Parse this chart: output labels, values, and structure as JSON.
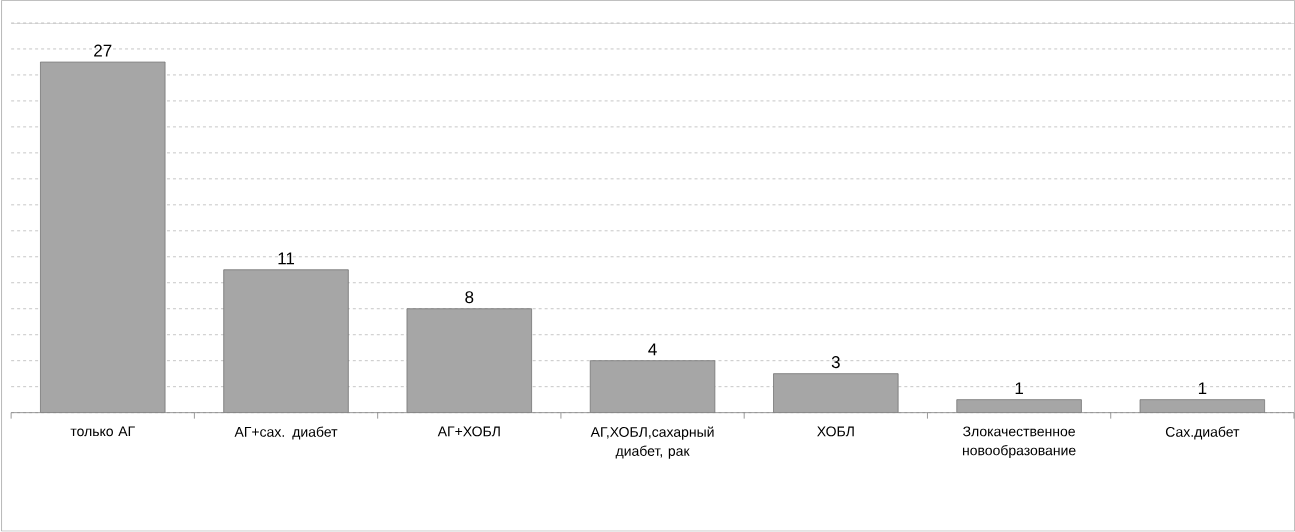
{
  "chart_data": {
    "type": "bar",
    "categories": [
      "только АГ",
      "АГ+сах. диабет",
      "АГ+ХОБЛ",
      "АГ,ХОБЛ,сахарный диабет, рак",
      "ХОБЛ",
      "Злокачественное новообразование",
      "Сах.диабет"
    ],
    "values": [
      27,
      11,
      8,
      4,
      3,
      1,
      1
    ],
    "color": "#a6a6a6",
    "data_labels": true,
    "grid": "y",
    "ylim": [
      0,
      30
    ]
  }
}
